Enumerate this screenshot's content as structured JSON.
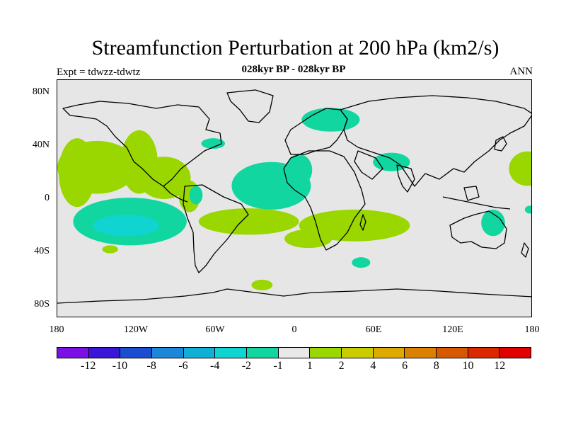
{
  "title": "Streamfunction Perturbation at 200 hPa (km2/s)",
  "subtitle": "028kyr BP - 028kyr BP",
  "left_label": "Expt = tdwzz-tdwtz",
  "right_label": "ANN",
  "lat_ticks": [
    "80N",
    "40N",
    "0",
    "40S",
    "80S"
  ],
  "lon_ticks": [
    "180",
    "120W",
    "60W",
    "0",
    "60E",
    "120E",
    "180"
  ],
  "colorbar": {
    "colors": [
      "#7a10e6",
      "#3a16d6",
      "#1a4dd0",
      "#1c86d8",
      "#10b0d6",
      "#10d4d2",
      "#12d6a0",
      "#e8e8e8",
      "#9ad600",
      "#c8cc00",
      "#dcaa00",
      "#dc8000",
      "#d85800",
      "#dc2800",
      "#e00000"
    ],
    "labels": [
      "-12",
      "-10",
      "-8",
      "-6",
      "-4",
      "-2",
      "-1",
      "1",
      "2",
      "4",
      "6",
      "8",
      "10",
      "12"
    ]
  },
  "regions": [
    {
      "lon": -165,
      "lat": 20,
      "rx": 14,
      "ry": 26,
      "color": "green"
    },
    {
      "lon": -150,
      "lat": 24,
      "rx": 30,
      "ry": 20,
      "color": "green"
    },
    {
      "lon": -118,
      "lat": 28,
      "rx": 14,
      "ry": 24,
      "color": "green"
    },
    {
      "lon": -99,
      "lat": 16,
      "rx": 20,
      "ry": 16,
      "color": "green"
    },
    {
      "lon": -80,
      "lat": 2,
      "rx": 8,
      "ry": 12,
      "color": "green"
    },
    {
      "lon": -75,
      "lat": 3,
      "rx": 5,
      "ry": 7,
      "color": "teal"
    },
    {
      "lon": -125,
      "lat": -17,
      "rx": 43,
      "ry": 18,
      "color": "teal"
    },
    {
      "lon": -128,
      "lat": -20,
      "rx": 25,
      "ry": 8,
      "color": "cyan"
    },
    {
      "lon": -140,
      "lat": -38,
      "rx": 6,
      "ry": 3,
      "color": "green"
    },
    {
      "lon": -62,
      "lat": 42,
      "rx": 9,
      "ry": 4,
      "color": "teal"
    },
    {
      "lon": -18,
      "lat": 10,
      "rx": 30,
      "ry": 18,
      "color": "teal"
    },
    {
      "lon": 3,
      "lat": 22,
      "rx": 10,
      "ry": 12,
      "color": "teal"
    },
    {
      "lon": 27,
      "lat": 60,
      "rx": 22,
      "ry": 9,
      "color": "teal"
    },
    {
      "lon": 73,
      "lat": 28,
      "rx": 14,
      "ry": 7,
      "color": "teal"
    },
    {
      "lon": -35,
      "lat": -17,
      "rx": 38,
      "ry": 10,
      "color": "green"
    },
    {
      "lon": 45,
      "lat": -20,
      "rx": 42,
      "ry": 12,
      "color": "green"
    },
    {
      "lon": 10,
      "lat": -30,
      "rx": 18,
      "ry": 7,
      "color": "green"
    },
    {
      "lon": 50,
      "lat": -48,
      "rx": 7,
      "ry": 4,
      "color": "teal"
    },
    {
      "lon": -25,
      "lat": -65,
      "rx": 8,
      "ry": 4,
      "color": "green"
    },
    {
      "lon": 150,
      "lat": -18,
      "rx": 9,
      "ry": 10,
      "color": "teal"
    },
    {
      "lon": 176,
      "lat": 23,
      "rx": 14,
      "ry": 13,
      "color": "green"
    },
    {
      "lon": 178,
      "lat": -8,
      "rx": 4,
      "ry": 3,
      "color": "teal"
    }
  ]
}
